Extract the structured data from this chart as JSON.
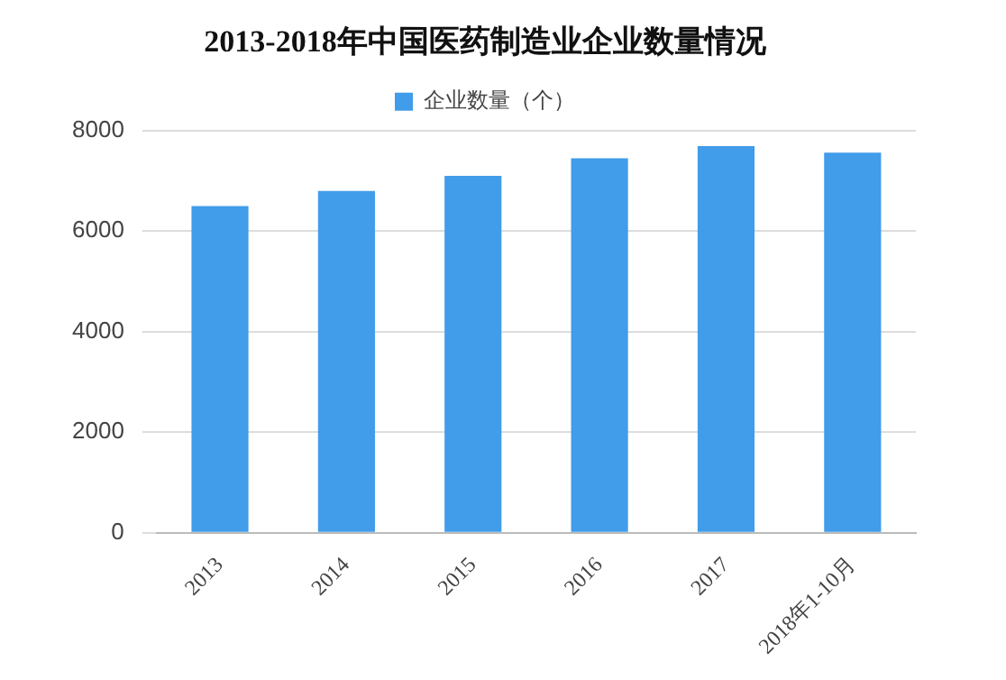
{
  "chart_data": {
    "type": "bar",
    "title": "2013-2018年中国医药制造业企业数量情况",
    "categories": [
      "2013",
      "2014",
      "2015",
      "2016",
      "2017",
      "2018年1-10月"
    ],
    "series": [
      {
        "name": "企业数量（个）",
        "color": "#419cea",
        "values": [
          6500,
          6800,
          7100,
          7450,
          7690,
          7560
        ]
      }
    ],
    "ylim": [
      0,
      8000
    ],
    "yticks": [
      0,
      2000,
      4000,
      6000,
      8000
    ],
    "grid": "y",
    "legend": "top"
  }
}
